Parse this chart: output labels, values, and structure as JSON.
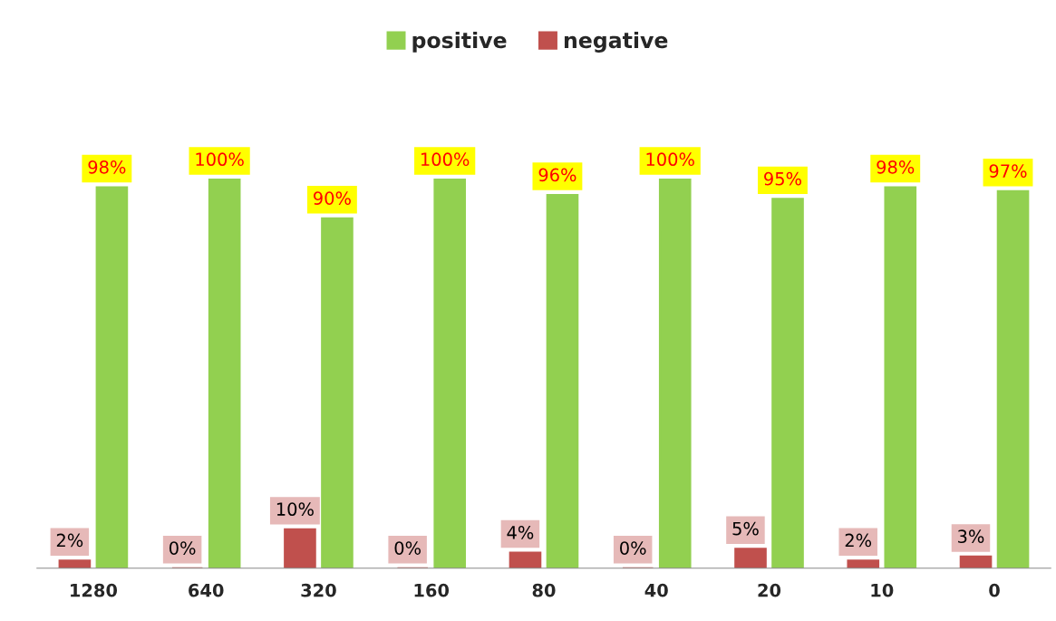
{
  "chart_data": {
    "type": "bar",
    "categories": [
      "1280",
      "640",
      "320",
      "160",
      "80",
      "40",
      "20",
      "10",
      "0"
    ],
    "series": [
      {
        "name": "positive",
        "color": "#92d050",
        "values": [
          98,
          100,
          90,
          100,
          96,
          100,
          95,
          98,
          97
        ],
        "value_labels": [
          "98%",
          "100%",
          "90%",
          "100%",
          "96%",
          "100%",
          "95%",
          "98%",
          "97%"
        ]
      },
      {
        "name": "negative",
        "color": "#c0504d",
        "values": [
          2,
          0,
          10,
          0,
          4,
          0,
          5,
          2,
          3
        ],
        "value_labels": [
          "2%",
          "0%",
          "10%",
          "0%",
          "4%",
          "0%",
          "5%",
          "2%",
          "3%"
        ]
      }
    ],
    "relative": false,
    "grid": false,
    "legend": "top"
  }
}
